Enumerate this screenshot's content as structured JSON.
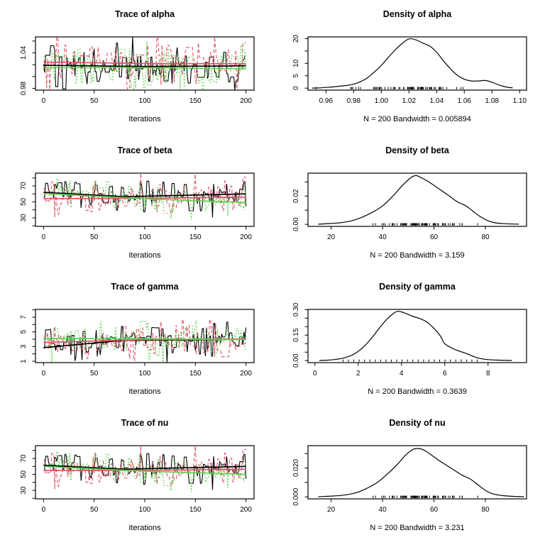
{
  "figure": {
    "background": "#ffffff",
    "description": "MCMC trace and density diagnostic plots, 3 chains",
    "parameters": [
      "alpha",
      "beta",
      "gamma",
      "nu"
    ]
  },
  "palette": {
    "chain1": "#000000",
    "chain2": "#DF536B",
    "chain3": "#61D04F",
    "axis": "#000000",
    "density_line": "#000000",
    "rug": "#000000"
  },
  "chart_data": [
    {
      "type": "line",
      "subtype": "mcmc-trace",
      "title": "Trace of alpha",
      "xlabel": "Iterations",
      "xlim": [
        -8,
        208
      ],
      "x_ticks": [
        0,
        50,
        100,
        150,
        200
      ],
      "x_tick_labels": [
        "0",
        "50",
        "100",
        "150",
        "200"
      ],
      "ylim": [
        0.977,
        1.067
      ],
      "y_ticks": [
        0.98,
        1.0,
        1.02,
        1.04,
        1.06
      ],
      "y_tick_labels": [
        "0.98",
        "",
        "",
        "1.04",
        ""
      ],
      "n_iterations": 200,
      "series": [
        {
          "name": "chain-1",
          "color": "#000000",
          "dash": "solid",
          "sd": 0.017,
          "seed": 101,
          "width": 1.1,
          "smoother": [
            [
              0,
              1.019
            ],
            [
              100,
              1.017
            ],
            [
              200,
              1.018
            ]
          ]
        },
        {
          "name": "chain-2",
          "color": "#DF536B",
          "dash": "dashed",
          "sd": 0.023,
          "seed": 102,
          "width": 1.1,
          "smoother": [
            [
              0,
              1.0245
            ],
            [
              100,
              1.022
            ],
            [
              200,
              1.0215
            ]
          ]
        },
        {
          "name": "chain-3",
          "color": "#61D04F",
          "dash": "dotted",
          "sd": 0.021,
          "seed": 103,
          "width": 1.4,
          "smoother": [
            [
              0,
              1.015
            ],
            [
              100,
              1.0152
            ],
            [
              200,
              1.013
            ]
          ]
        }
      ]
    },
    {
      "type": "line",
      "subtype": "density",
      "title": "Density of alpha",
      "xlabel": "N = 200   Bandwidth = 0.005894",
      "n": 200,
      "bandwidth": 0.005894,
      "xlim": [
        0.947,
        1.105
      ],
      "x_ticks": [
        0.96,
        0.98,
        1.0,
        1.02,
        1.04,
        1.06,
        1.08,
        1.1
      ],
      "x_tick_labels": [
        "0.96",
        "0.98",
        "1.00",
        "1.02",
        "1.04",
        "1.06",
        "1.08",
        "1.10"
      ],
      "ylim": [
        -0.8,
        20.7
      ],
      "y_ticks": [
        0,
        5,
        10,
        15,
        20
      ],
      "y_tick_labels": [
        "0",
        "5",
        "10",
        "",
        "20"
      ],
      "curve": [
        [
          0.95,
          0.02
        ],
        [
          0.955,
          0.1
        ],
        [
          0.96,
          0.3
        ],
        [
          0.965,
          0.5
        ],
        [
          0.97,
          0.8
        ],
        [
          0.975,
          1.1
        ],
        [
          0.98,
          1.6
        ],
        [
          0.985,
          2.6
        ],
        [
          0.99,
          4.2
        ],
        [
          0.995,
          6.5
        ],
        [
          1.0,
          9.2
        ],
        [
          1.005,
          12.4
        ],
        [
          1.01,
          15.4
        ],
        [
          1.015,
          18.0
        ],
        [
          1.02,
          19.9
        ],
        [
          1.025,
          19.5
        ],
        [
          1.03,
          18.2
        ],
        [
          1.035,
          17.0
        ],
        [
          1.04,
          14.5
        ],
        [
          1.045,
          11.0
        ],
        [
          1.05,
          7.8
        ],
        [
          1.055,
          5.2
        ],
        [
          1.06,
          3.6
        ],
        [
          1.065,
          2.9
        ],
        [
          1.07,
          2.9
        ],
        [
          1.075,
          3.1
        ],
        [
          1.08,
          2.4
        ],
        [
          1.085,
          1.3
        ],
        [
          1.09,
          0.5
        ],
        [
          1.095,
          0.1
        ]
      ],
      "rug": {
        "n": 80,
        "center": 1.022,
        "sd": 0.02,
        "min": 0.953,
        "max": 1.094,
        "seed": 111
      }
    },
    {
      "type": "line",
      "subtype": "mcmc-trace",
      "title": "Trace of beta",
      "xlabel": "Iterations",
      "xlim": [
        -8,
        208
      ],
      "x_ticks": [
        0,
        50,
        100,
        150,
        200
      ],
      "x_tick_labels": [
        "0",
        "50",
        "100",
        "150",
        "200"
      ],
      "ylim": [
        19.3,
        86
      ],
      "y_ticks": [
        20,
        30,
        40,
        50,
        60,
        70,
        80
      ],
      "y_tick_labels": [
        "",
        "30",
        "",
        "50",
        "",
        "70",
        ""
      ],
      "n_iterations": 200,
      "series": [
        {
          "name": "chain-1",
          "color": "#000000",
          "dash": "solid",
          "sd": 9,
          "seed": 201,
          "width": 1.1,
          "smoother": [
            [
              0,
              62
            ],
            [
              80,
              56.5
            ],
            [
              200,
              60
            ]
          ]
        },
        {
          "name": "chain-2",
          "color": "#DF536B",
          "dash": "dashed",
          "sd": 11,
          "seed": 202,
          "width": 1.1,
          "smoother": [
            [
              0,
              54
            ],
            [
              100,
              54.5
            ],
            [
              200,
              56
            ]
          ]
        },
        {
          "name": "chain-3",
          "color": "#61D04F",
          "dash": "dotted",
          "sd": 10,
          "seed": 203,
          "width": 1.4,
          "smoother": [
            [
              0,
              60.5
            ],
            [
              100,
              54
            ],
            [
              200,
              49
            ]
          ]
        }
      ]
    },
    {
      "type": "line",
      "subtype": "density",
      "title": "Density of beta",
      "xlabel": "N = 200   Bandwidth = 3.159",
      "n": 200,
      "bandwidth": 3.159,
      "xlim": [
        11,
        96
      ],
      "x_ticks": [
        20,
        40,
        60,
        80
      ],
      "x_tick_labels": [
        "20",
        "40",
        "60",
        "80"
      ],
      "ylim": [
        -0.00145,
        0.0362
      ],
      "y_ticks": [
        0,
        0.01,
        0.02,
        0.03
      ],
      "y_tick_labels": [
        "0.00",
        "",
        "0.02",
        ""
      ],
      "curve": [
        [
          15,
          0.0001
        ],
        [
          20,
          0.0006
        ],
        [
          24,
          0.0012
        ],
        [
          28,
          0.0025
        ],
        [
          32,
          0.005
        ],
        [
          36,
          0.0085
        ],
        [
          40,
          0.013
        ],
        [
          44,
          0.02
        ],
        [
          48,
          0.028
        ],
        [
          51,
          0.033
        ],
        [
          53,
          0.0345
        ],
        [
          55,
          0.033
        ],
        [
          58,
          0.03
        ],
        [
          62,
          0.025
        ],
        [
          66,
          0.02
        ],
        [
          69,
          0.016
        ],
        [
          72,
          0.0135
        ],
        [
          74,
          0.011
        ],
        [
          76,
          0.008
        ],
        [
          78,
          0.0055
        ],
        [
          81,
          0.0025
        ],
        [
          84,
          0.001
        ],
        [
          88,
          0.0004
        ],
        [
          93,
          0.0001
        ]
      ],
      "rug": {
        "n": 80,
        "center": 55,
        "sd": 10,
        "min": 24,
        "max": 82,
        "seed": 211
      }
    },
    {
      "type": "line",
      "subtype": "mcmc-trace",
      "title": "Trace of gamma",
      "xlabel": "Iterations",
      "xlim": [
        -8,
        208
      ],
      "x_ticks": [
        0,
        50,
        100,
        150,
        200
      ],
      "x_tick_labels": [
        "0",
        "50",
        "100",
        "150",
        "200"
      ],
      "ylim": [
        0.81,
        8.06
      ],
      "y_ticks": [
        1,
        2,
        3,
        4,
        5,
        6,
        7,
        8
      ],
      "y_tick_labels": [
        "1",
        "",
        "3",
        "",
        "5",
        "",
        "7",
        ""
      ],
      "n_iterations": 200,
      "series": [
        {
          "name": "chain-1",
          "color": "#000000",
          "dash": "solid",
          "sd": 1.15,
          "seed": 301,
          "width": 1.1,
          "smoother": [
            [
              0,
              2.85
            ],
            [
              80,
              3.85
            ],
            [
              200,
              4.0
            ]
          ]
        },
        {
          "name": "chain-2",
          "color": "#DF536B",
          "dash": "dashed",
          "sd": 1.25,
          "seed": 302,
          "width": 1.1,
          "smoother": [
            [
              0,
              3.55
            ],
            [
              100,
              3.95
            ],
            [
              200,
              4.05
            ]
          ]
        },
        {
          "name": "chain-3",
          "color": "#61D04F",
          "dash": "dotted",
          "sd": 1.2,
          "seed": 303,
          "width": 1.4,
          "smoother": [
            [
              0,
              4.1
            ],
            [
              100,
              4.05
            ],
            [
              200,
              3.95
            ]
          ]
        }
      ]
    },
    {
      "type": "line",
      "subtype": "density",
      "title": "Density of gamma",
      "xlabel": "N = 200   Bandwidth = 0.3639",
      "n": 200,
      "bandwidth": 0.3639,
      "xlim": [
        -0.32,
        9.78
      ],
      "x_ticks": [
        0,
        2,
        4,
        6,
        8
      ],
      "x_tick_labels": [
        "0",
        "2",
        "4",
        "6",
        "8"
      ],
      "ylim": [
        -0.0116,
        0.3016
      ],
      "y_ticks": [
        0,
        0.05,
        0.1,
        0.15,
        0.2,
        0.25,
        0.3
      ],
      "y_tick_labels": [
        "0.00",
        "",
        "",
        "0.15",
        "",
        "",
        "0.30"
      ],
      "curve": [
        [
          0.2,
          0.001
        ],
        [
          0.6,
          0.003
        ],
        [
          1.0,
          0.008
        ],
        [
          1.4,
          0.018
        ],
        [
          1.8,
          0.038
        ],
        [
          2.2,
          0.075
        ],
        [
          2.6,
          0.13
        ],
        [
          3.0,
          0.195
        ],
        [
          3.3,
          0.24
        ],
        [
          3.6,
          0.275
        ],
        [
          3.8,
          0.29
        ],
        [
          4.0,
          0.287
        ],
        [
          4.2,
          0.278
        ],
        [
          4.5,
          0.262
        ],
        [
          4.8,
          0.25
        ],
        [
          5.0,
          0.24
        ],
        [
          5.2,
          0.225
        ],
        [
          5.5,
          0.19
        ],
        [
          5.8,
          0.145
        ],
        [
          6.0,
          0.1
        ],
        [
          6.4,
          0.07
        ],
        [
          6.7,
          0.055
        ],
        [
          7.0,
          0.042
        ],
        [
          7.3,
          0.026
        ],
        [
          7.6,
          0.014
        ],
        [
          8.0,
          0.006
        ],
        [
          8.5,
          0.003
        ],
        [
          9.1,
          0.001
        ]
      ],
      "rug": {
        "uniform": true,
        "n": 26,
        "min": 1.3,
        "max": 7.5,
        "seed": 311
      }
    },
    {
      "type": "line",
      "subtype": "mcmc-trace",
      "title": "Trace of nu",
      "xlabel": "Iterations",
      "xlim": [
        -8,
        208
      ],
      "x_ticks": [
        0,
        50,
        100,
        150,
        200
      ],
      "x_tick_labels": [
        "0",
        "50",
        "100",
        "150",
        "200"
      ],
      "ylim": [
        19.3,
        86
      ],
      "y_ticks": [
        20,
        30,
        40,
        50,
        60,
        70,
        80
      ],
      "y_tick_labels": [
        "",
        "30",
        "",
        "50",
        "",
        "70",
        ""
      ],
      "n_iterations": 200,
      "series": [
        {
          "name": "chain-1",
          "color": "#000000",
          "dash": "solid",
          "sd": 9,
          "seed": 201,
          "width": 1.1,
          "smoother": [
            [
              0,
              61.5
            ],
            [
              80,
              56.5
            ],
            [
              200,
              60
            ]
          ]
        },
        {
          "name": "chain-2",
          "color": "#DF536B",
          "dash": "dashed",
          "sd": 11,
          "seed": 202,
          "width": 1.1,
          "smoother": [
            [
              0,
              55
            ],
            [
              100,
              55
            ],
            [
              200,
              56.5
            ]
          ]
        },
        {
          "name": "chain-3",
          "color": "#61D04F",
          "dash": "dotted",
          "sd": 10,
          "seed": 203,
          "width": 1.4,
          "smoother": [
            [
              0,
              60
            ],
            [
              100,
              54
            ],
            [
              200,
              50
            ]
          ]
        }
      ]
    },
    {
      "type": "line",
      "subtype": "density",
      "title": "Density of nu",
      "xlabel": "N = 200   Bandwidth = 3.231",
      "n": 200,
      "bandwidth": 3.231,
      "xlim": [
        11,
        96
      ],
      "x_ticks": [
        20,
        40,
        60,
        80
      ],
      "x_tick_labels": [
        "20",
        "40",
        "60",
        "80"
      ],
      "ylim": [
        -0.0014,
        0.0355
      ],
      "y_ticks": [
        0,
        0.01,
        0.02,
        0.03
      ],
      "y_tick_labels": [
        "0.000",
        "",
        "0.020",
        ""
      ],
      "curve": [
        [
          15,
          0.0001
        ],
        [
          20,
          0.0005
        ],
        [
          25,
          0.0012
        ],
        [
          30,
          0.003
        ],
        [
          34,
          0.006
        ],
        [
          38,
          0.01
        ],
        [
          42,
          0.016
        ],
        [
          46,
          0.023
        ],
        [
          49,
          0.029
        ],
        [
          52,
          0.033
        ],
        [
          54,
          0.0335
        ],
        [
          56,
          0.0325
        ],
        [
          59,
          0.029
        ],
        [
          63,
          0.024
        ],
        [
          67,
          0.0195
        ],
        [
          71,
          0.015
        ],
        [
          74,
          0.0125
        ],
        [
          77,
          0.0085
        ],
        [
          80,
          0.0045
        ],
        [
          83,
          0.002
        ],
        [
          87,
          0.0008
        ],
        [
          91,
          0.0003
        ],
        [
          95,
          0.0001
        ]
      ],
      "rug": {
        "n": 80,
        "center": 55,
        "sd": 10,
        "min": 24,
        "max": 82,
        "seed": 211
      }
    }
  ]
}
